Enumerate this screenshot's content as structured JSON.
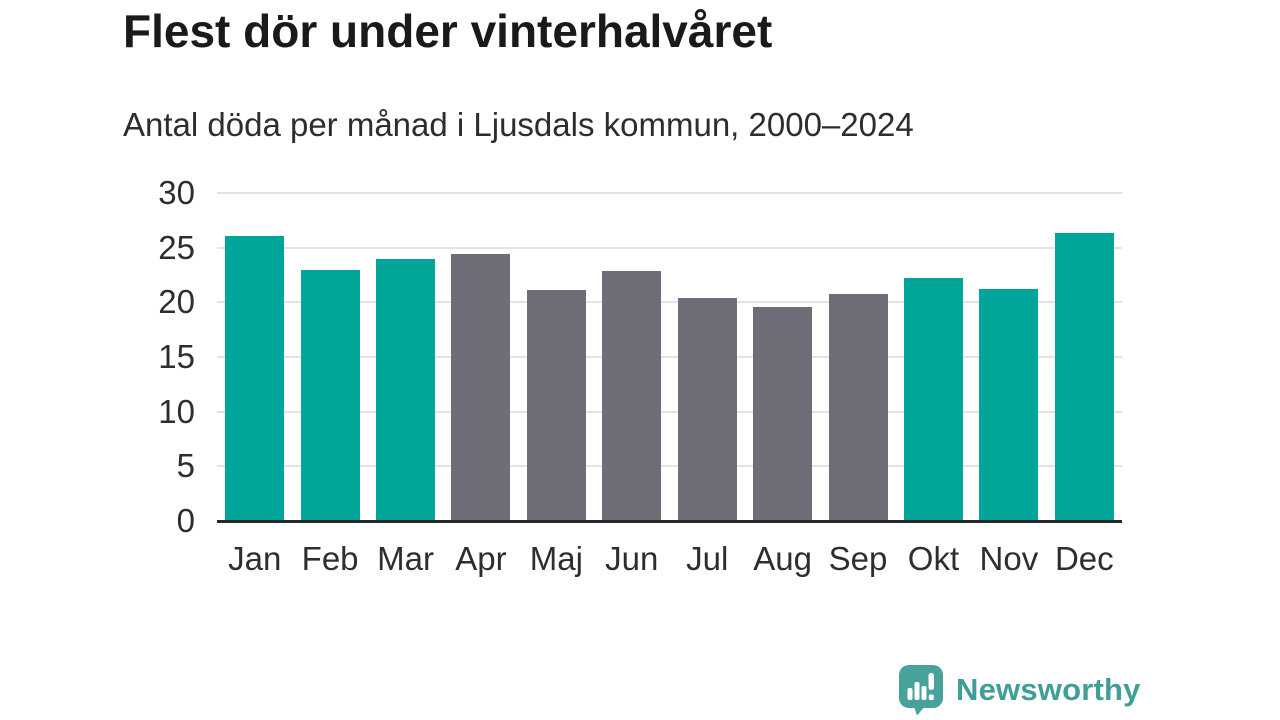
{
  "header": {
    "title": "Flest dör under vinterhalvåret",
    "subtitle": "Antal döda per månad i Ljusdals kommun, 2000–2024"
  },
  "chart_data": {
    "type": "bar",
    "title": "Flest dör under vinterhalvåret",
    "subtitle": "Antal döda per månad i Ljusdals kommun, 2000–2024",
    "categories": [
      "Jan",
      "Feb",
      "Mar",
      "Apr",
      "Maj",
      "Jun",
      "Jul",
      "Aug",
      "Sep",
      "Okt",
      "Nov",
      "Dec"
    ],
    "values": [
      26.1,
      23.0,
      24.0,
      24.4,
      21.1,
      22.9,
      20.4,
      19.6,
      20.8,
      22.2,
      21.2,
      26.3
    ],
    "bar_color_keys": [
      "teal",
      "teal",
      "teal",
      "gray",
      "gray",
      "gray",
      "gray",
      "gray",
      "gray",
      "teal",
      "teal",
      "teal"
    ],
    "colors": {
      "teal": "#00a69a",
      "gray": "#6e6e78",
      "gridline": "#e3e3e3",
      "axis_line": "#26282b",
      "tick_text": "#2e2e2e"
    },
    "ylim": [
      0,
      30
    ],
    "yticks": [
      0,
      5,
      10,
      15,
      20,
      25,
      30
    ],
    "grid": true,
    "legend": "none",
    "xlabel": "",
    "ylabel": ""
  },
  "footer": {
    "brand": "Newsworthy",
    "brand_color": "#3f9e97",
    "logo_icon_color": "#47a29b",
    "logo_icon": "bar-chart-speech-bubble-icon"
  }
}
